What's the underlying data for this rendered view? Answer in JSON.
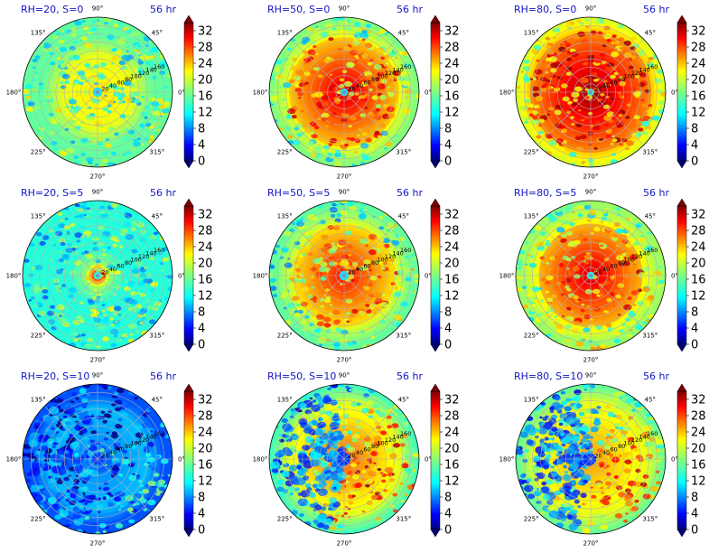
{
  "chart_data": {
    "type": "heatmap",
    "projection": "polar",
    "layout": "3x3 grid",
    "colormap": "jet",
    "grid": true,
    "angular_ticks": [
      "90°",
      "45°",
      "0°",
      "315°",
      "270°",
      "225°",
      "180°",
      "135°"
    ],
    "angular_tick_degrees": [
      90,
      45,
      0,
      315,
      270,
      225,
      180,
      135
    ],
    "radial_ticks": [
      20,
      40,
      60,
      80,
      100,
      120,
      140,
      160
    ],
    "radial_max": 180,
    "radial_label_angle_deg": 22.5,
    "colorbar": {
      "ticks": [
        0,
        4,
        8,
        12,
        16,
        20,
        24,
        28,
        32
      ],
      "range": [
        0,
        34
      ],
      "extend": "both"
    },
    "panels": [
      {
        "title": "RH=20, S=0",
        "time": "56 hr",
        "rh": 20,
        "s": 0,
        "eye_value": 12,
        "eye_radius": 8,
        "ring_inner": 10,
        "ring_outer": 95,
        "ring_peak": 22,
        "outer_value": 16,
        "asym": 0.0
      },
      {
        "title": "RH=50, S=0",
        "time": "56 hr",
        "rh": 50,
        "s": 0,
        "eye_value": 12,
        "eye_radius": 6,
        "ring_inner": 10,
        "ring_outer": 135,
        "ring_peak": 31,
        "outer_value": 17,
        "asym": 0.0
      },
      {
        "title": "RH=80, S=0",
        "time": "56 hr",
        "rh": 80,
        "s": 0,
        "eye_value": 14,
        "eye_radius": 5,
        "ring_inner": 8,
        "ring_outer": 150,
        "ring_peak": 33,
        "outer_value": 19,
        "asym": 0.0
      },
      {
        "title": "RH=20, S=5",
        "time": "56 hr",
        "rh": 20,
        "s": 5,
        "eye_value": 14,
        "eye_radius": 6,
        "ring_inner": 8,
        "ring_outer": 28,
        "ring_peak": 30,
        "outer_value": 14,
        "asym": 0.1
      },
      {
        "title": "RH=50, S=5",
        "time": "56 hr",
        "rh": 50,
        "s": 5,
        "eye_value": 12,
        "eye_radius": 8,
        "ring_inner": 10,
        "ring_outer": 130,
        "ring_peak": 29,
        "outer_value": 16,
        "asym": 0.2
      },
      {
        "title": "RH=80, S=5",
        "time": "56 hr",
        "rh": 80,
        "s": 5,
        "eye_value": 13,
        "eye_radius": 6,
        "ring_inner": 8,
        "ring_outer": 125,
        "ring_peak": 31,
        "outer_value": 18,
        "asym": 0.1
      },
      {
        "title": "RH=20, S=10",
        "time": "56 hr",
        "rh": 20,
        "s": 10,
        "eye_value": 6,
        "eye_radius": 10,
        "ring_inner": 40,
        "ring_outer": 120,
        "ring_peak": 9,
        "outer_value": 7,
        "asym": 0.5
      },
      {
        "title": "RH=50, S=10",
        "time": "56 hr",
        "rh": 50,
        "s": 10,
        "eye_value": 6,
        "eye_radius": 12,
        "ring_inner": 20,
        "ring_outer": 150,
        "ring_peak": 26,
        "outer_value": 14,
        "asym": 0.8
      },
      {
        "title": "RH=80, S=10",
        "time": "56 hr",
        "rh": 80,
        "s": 10,
        "eye_value": 6,
        "eye_radius": 10,
        "ring_inner": 20,
        "ring_outer": 150,
        "ring_peak": 24,
        "outer_value": 15,
        "asym": 0.8
      }
    ]
  }
}
